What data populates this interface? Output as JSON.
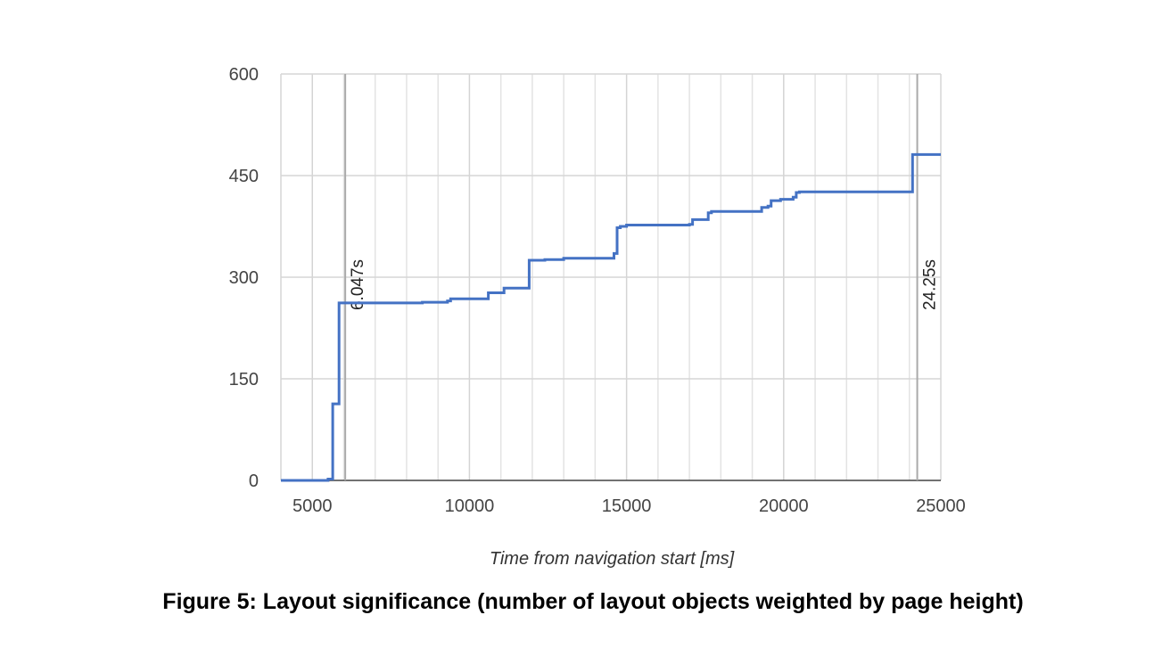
{
  "chart_data": {
    "type": "line",
    "step": true,
    "xlabel": "Time from navigation start [ms]",
    "ylabel": "",
    "xlim": [
      4000,
      25000
    ],
    "ylim": [
      0,
      600
    ],
    "x_ticks": [
      5000,
      10000,
      15000,
      20000,
      25000
    ],
    "y_ticks": [
      0,
      150,
      300,
      450,
      600
    ],
    "x_minor_ticks": [
      6000,
      7000,
      8000,
      9000,
      11000,
      12000,
      13000,
      14000,
      16000,
      17000,
      18000,
      19000,
      21000,
      22000,
      23000,
      24000
    ],
    "grid": true,
    "legend": "none",
    "line_color": "#4472c4",
    "markers": [
      {
        "x": 6047,
        "label": "6.047s"
      },
      {
        "x": 24250,
        "label": "24.25s"
      }
    ],
    "series": [
      {
        "x": [
          4000,
          5500,
          5650,
          5850,
          5950,
          8500,
          9300,
          9400,
          10500,
          10600,
          11000,
          11100,
          11800,
          11900,
          12400,
          13000,
          14400,
          14600,
          14700,
          14800,
          15000,
          15300,
          17000,
          17100,
          17500,
          17600,
          17700,
          18000,
          19200,
          19300,
          19500,
          19600,
          19900,
          20300,
          20400,
          20500,
          24000,
          24100,
          25000
        ],
        "y": [
          0,
          2,
          113,
          262,
          262,
          263,
          265,
          268,
          268,
          277,
          277,
          284,
          284,
          325,
          326,
          328,
          328,
          335,
          373,
          375,
          377,
          377,
          378,
          385,
          385,
          395,
          397,
          397,
          397,
          403,
          405,
          413,
          415,
          418,
          425,
          426,
          426,
          481,
          481
        ]
      }
    ]
  },
  "caption": "Figure 5: Layout significance (number of layout objects weighted by page height)"
}
